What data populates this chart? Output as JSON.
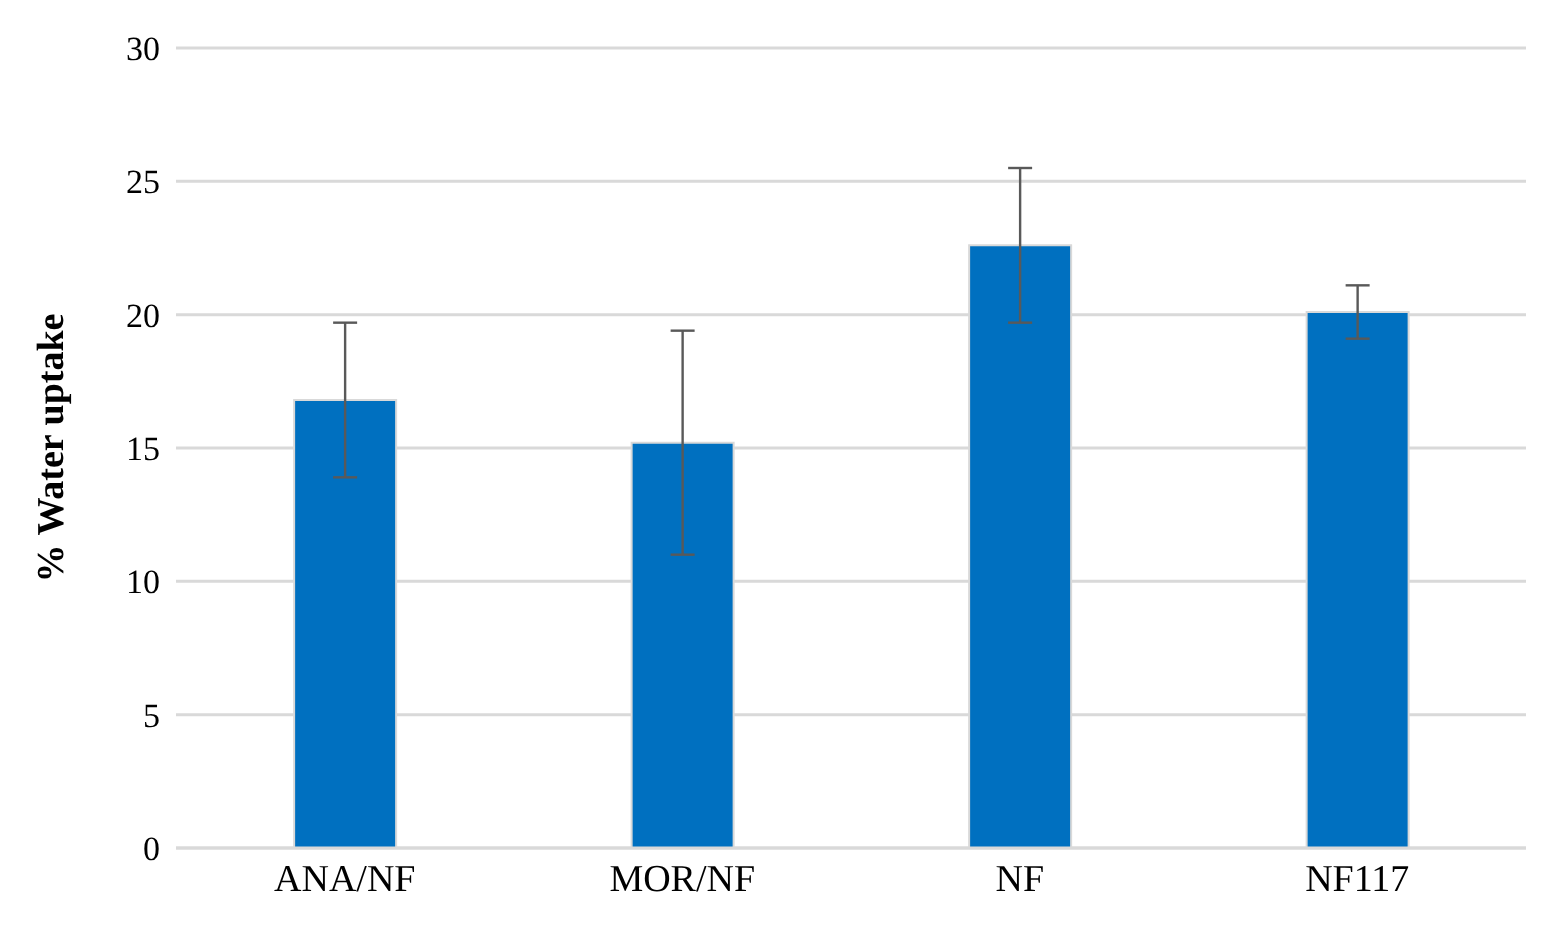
{
  "chart_data": {
    "type": "bar",
    "ylabel": "% Water uptake",
    "categories": [
      "ANA/NF",
      "MOR/NF",
      "NF",
      "NF117"
    ],
    "values": [
      16.8,
      15.2,
      22.6,
      20.1
    ],
    "errors": [
      2.9,
      4.2,
      2.9,
      1.0
    ],
    "color": "#0070c0",
    "ylim": [
      0,
      30
    ],
    "yticks": [
      0,
      5,
      10,
      15,
      20,
      25,
      30
    ],
    "grid": "y"
  }
}
